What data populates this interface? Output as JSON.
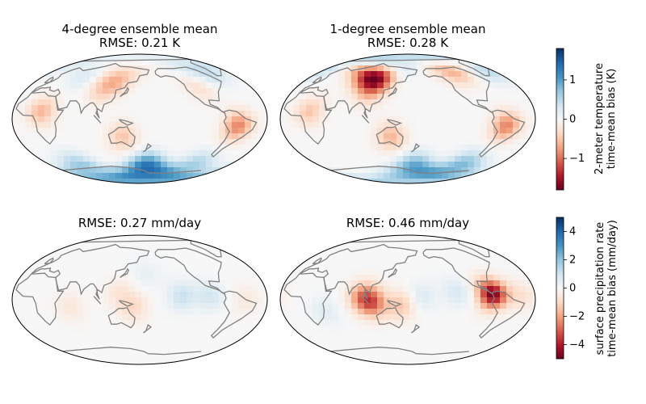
{
  "chart_data": [
    {
      "type": "heatmap",
      "title_line1": "4-degree ensemble mean",
      "title_line2": "RMSE: 0.21 K",
      "variable": "2-meter temperature time-mean bias (K)",
      "projection": "robinson, centered on Pacific",
      "colormap": "RdBu",
      "vlim": [
        -1.8,
        1.8
      ],
      "bias_regions": [
        {
          "lon": -70,
          "lat": 65,
          "value": 0.5
        },
        {
          "lon": 120,
          "lat": 55,
          "value": -0.5
        },
        {
          "lon": 100,
          "lat": 40,
          "value": -0.4
        },
        {
          "lon": -60,
          "lat": -10,
          "value": -0.9
        },
        {
          "lon": 20,
          "lat": 10,
          "value": -0.6
        },
        {
          "lon": 135,
          "lat": -25,
          "value": -0.5
        },
        {
          "lon": -100,
          "lat": 45,
          "value": -0.3
        },
        {
          "lon": 60,
          "lat": 60,
          "value": 0.3
        },
        {
          "lon": 175,
          "lat": -68,
          "value": 1.4
        },
        {
          "lon": 40,
          "lat": -68,
          "value": 0.7
        },
        {
          "lon": -90,
          "lat": -65,
          "value": 0.6
        }
      ]
    },
    {
      "type": "heatmap",
      "title_line1": "1-degree ensemble mean",
      "title_line2": "RMSE: 0.28 K",
      "variable": "2-meter temperature time-mean bias (K)",
      "projection": "robinson, centered on Pacific",
      "colormap": "RdBu",
      "vlim": [
        -1.8,
        1.8
      ],
      "bias_regions": [
        {
          "lon": 110,
          "lat": 58,
          "value": -1.4
        },
        {
          "lon": 90,
          "lat": 60,
          "value": -1.0
        },
        {
          "lon": 125,
          "lat": 72,
          "value": 1.3
        },
        {
          "lon": -105,
          "lat": 68,
          "value": -0.7
        },
        {
          "lon": -60,
          "lat": -10,
          "value": -0.9
        },
        {
          "lon": 135,
          "lat": -25,
          "value": -0.6
        },
        {
          "lon": 20,
          "lat": 10,
          "value": -0.5
        },
        {
          "lon": 100,
          "lat": 35,
          "value": -0.4
        },
        {
          "lon": -40,
          "lat": 72,
          "value": 0.6
        },
        {
          "lon": 175,
          "lat": -68,
          "value": 1.0
        },
        {
          "lon": -90,
          "lat": -65,
          "value": 0.8
        }
      ]
    },
    {
      "type": "heatmap",
      "title_line1": "",
      "title_line2": "RMSE: 0.27 mm/day",
      "variable": "surface precipitation rate time-mean bias (mm/day)",
      "projection": "robinson, centered on Pacific",
      "colormap": "RdBu",
      "vlim": [
        -5,
        5
      ],
      "bias_regions": [
        {
          "lon": -140,
          "lat": 5,
          "value": 1.1
        },
        {
          "lon": -100,
          "lat": 5,
          "value": 0.9
        },
        {
          "lon": 150,
          "lat": -10,
          "value": -1.0
        },
        {
          "lon": 130,
          "lat": 10,
          "value": -0.6
        },
        {
          "lon": 60,
          "lat": -10,
          "value": -0.6
        },
        {
          "lon": -50,
          "lat": 0,
          "value": -0.5
        },
        {
          "lon": 170,
          "lat": 35,
          "value": 0.4
        }
      ]
    },
    {
      "type": "heatmap",
      "title_line1": "",
      "title_line2": "RMSE: 0.46 mm/day",
      "variable": "surface precipitation rate time-mean bias (mm/day)",
      "projection": "robinson, centered on Pacific",
      "colormap": "RdBu",
      "vlim": [
        -5,
        5
      ],
      "bias_regions": [
        {
          "lon": -80,
          "lat": 8,
          "value": -4.8
        },
        {
          "lon": 110,
          "lat": -5,
          "value": -2.6
        },
        {
          "lon": 95,
          "lat": 5,
          "value": -2.0
        },
        {
          "lon": 150,
          "lat": -8,
          "value": -1.4
        },
        {
          "lon": -130,
          "lat": 10,
          "value": 0.8
        },
        {
          "lon": 40,
          "lat": -15,
          "value": 0.6
        },
        {
          "lon": 180,
          "lat": 5,
          "value": 0.7
        },
        {
          "lon": -40,
          "lat": 5,
          "value": -0.8
        }
      ]
    }
  ],
  "colorbars": [
    {
      "label_line1": "2-meter temperature",
      "label_line2": "time-mean bias (K)",
      "range": [
        -1.8,
        1.8
      ],
      "ticks": [
        1,
        0,
        -1
      ],
      "tick_labels": [
        "1",
        "0",
        "−1"
      ]
    },
    {
      "label_line1": "surface precipitation rate",
      "label_line2": "time-mean bias (mm/day)",
      "range": [
        -5,
        5
      ],
      "ticks": [
        4,
        2,
        0,
        -2,
        -4
      ],
      "tick_labels": [
        "4",
        "2",
        "0",
        "−2",
        "−4"
      ]
    }
  ],
  "colors": {
    "coastline": "#808080",
    "map_outline": "#000000"
  }
}
